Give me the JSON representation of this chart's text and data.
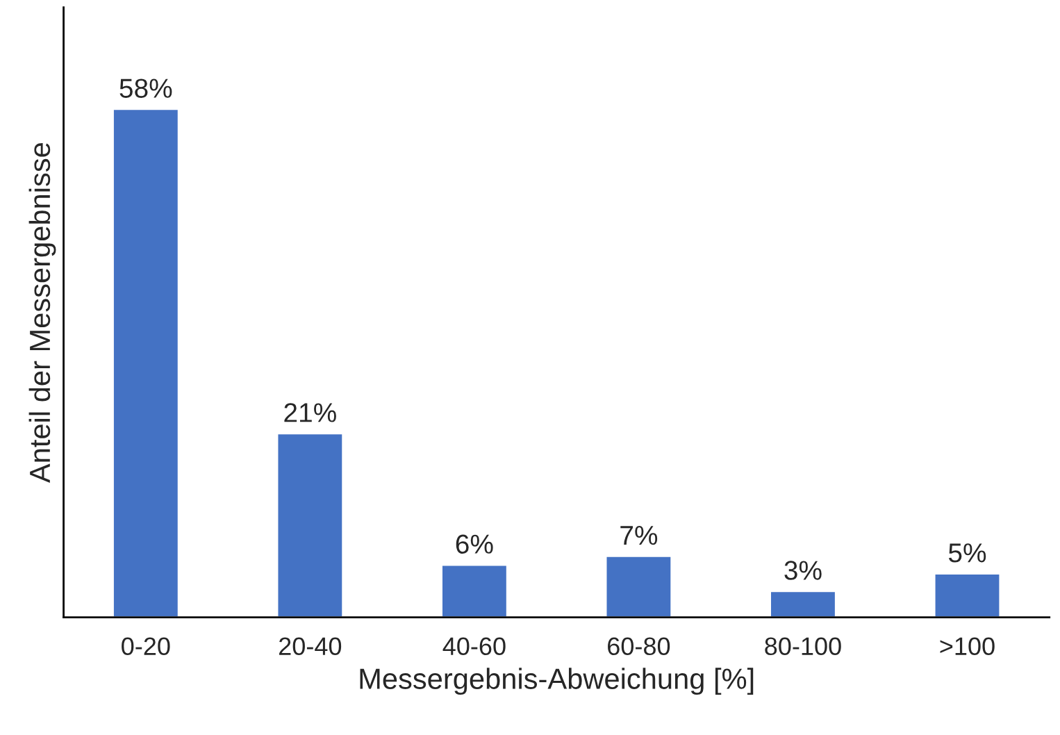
{
  "chart_data": {
    "type": "bar",
    "xlabel": "Messergebnis-Abweichung [%]",
    "ylabel": "Anteil der Messergebnisse",
    "categories": [
      "0-20",
      "20-40",
      "40-60",
      "60-80",
      "80-100",
      ">100"
    ],
    "values": [
      58,
      21,
      6,
      7,
      3,
      5
    ],
    "value_labels": [
      "58%",
      "21%",
      "6%",
      "7%",
      "3%",
      "5%"
    ],
    "color": "#4472c4",
    "grid": false,
    "legend": false
  }
}
